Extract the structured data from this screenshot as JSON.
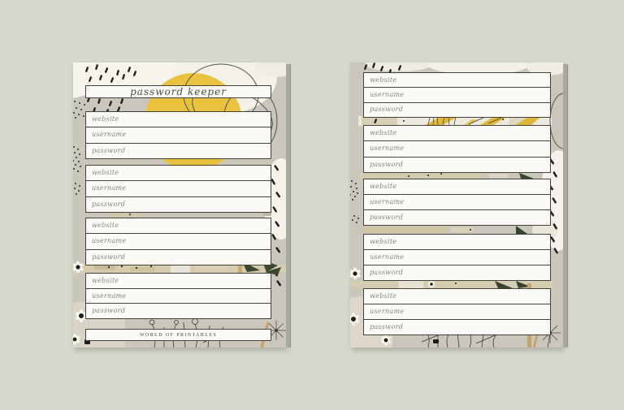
{
  "left_page": {
    "title": "password keeper",
    "footer": "WORLD OF PRINTABLES",
    "section_count": 4,
    "field_labels": [
      "website",
      "username",
      "password"
    ]
  },
  "right_page": {
    "section_count": 5,
    "field_labels": [
      "website",
      "username",
      "password"
    ]
  },
  "colors": {
    "outer_background": "#d5d8cb",
    "page_background": "#cac6bb",
    "box_background": "#fbfaf6",
    "box_border": "#43433c",
    "label_text": "#85857c",
    "title_text": "#4b4c45",
    "footer_text": "#45463f",
    "page_edge": "#aba79c",
    "accent_yellow": "#e9c33e",
    "leaf_green": "#3a4733",
    "tan_band": "#d5ccae",
    "ink_marks": "#21211b"
  }
}
